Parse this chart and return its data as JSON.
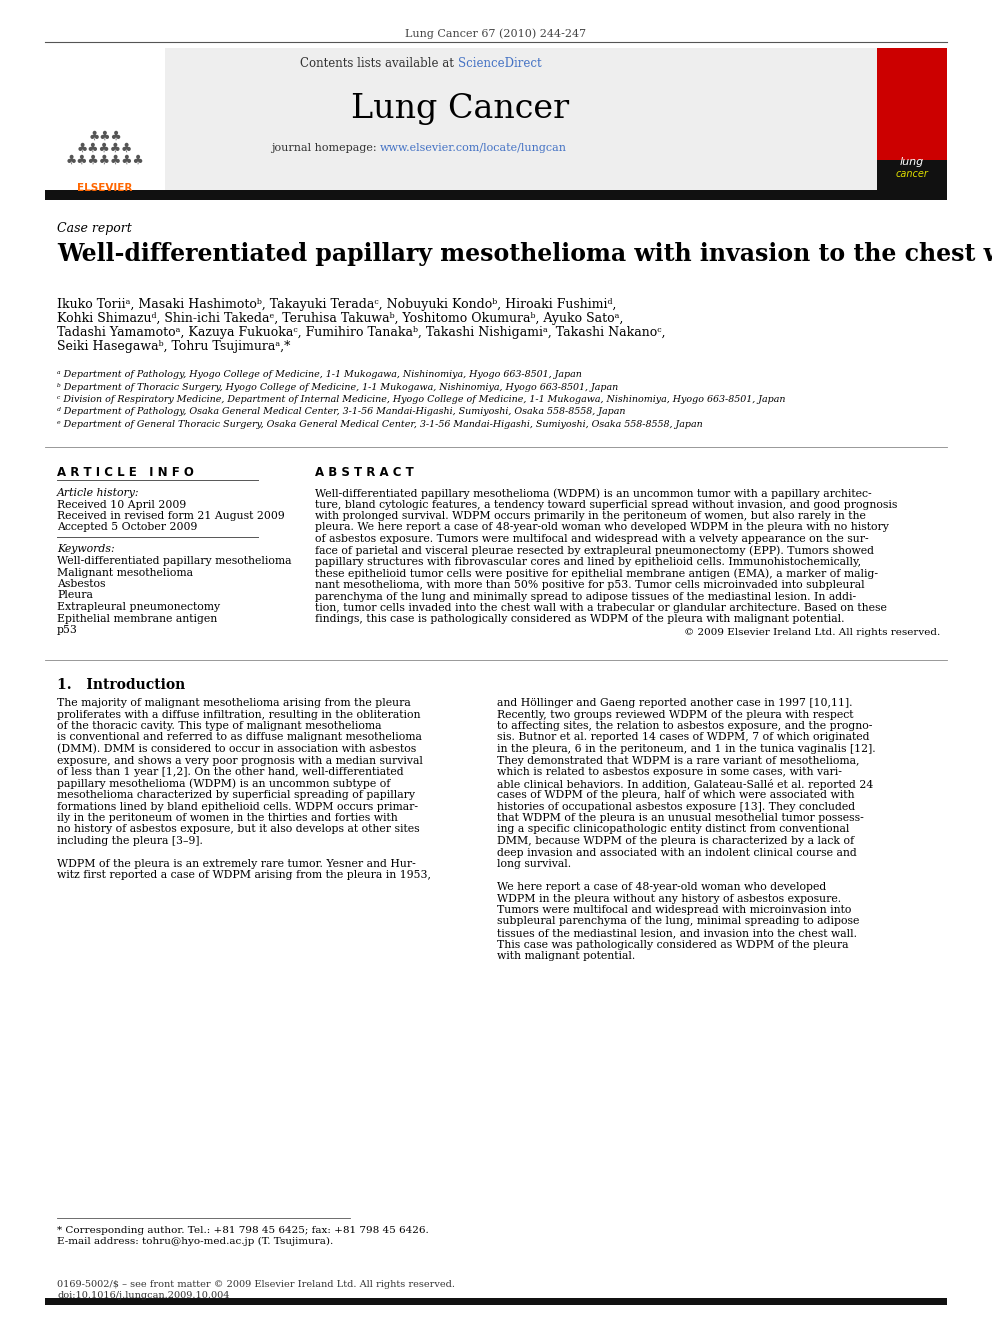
{
  "journal_ref": "Lung Cancer 67 (2010) 244-247",
  "contents_text": "Contents lists available at ",
  "sciencedirect_text": "ScienceDirect",
  "journal_name": "Lung Cancer",
  "journal_homepage": "journal homepage: ",
  "journal_url": "www.elsevier.com/locate/lungcan",
  "section_label": "Case report",
  "title": "Well-differentiated papillary mesothelioma with invasion to the chest wall",
  "authors_line1": "Ikuko Toriiᵃ, Masaki Hashimotoᵇ, Takayuki Teradaᶜ, Nobuyuki Kondoᵇ, Hiroaki Fushimiᵈ,",
  "authors_line2": "Kohki Shimazuᵈ, Shin-ichi Takedaᵉ, Teruhisa Takuwaᵇ, Yoshitomo Okumuraᵇ, Ayuko Satoᵃ,",
  "authors_line3": "Tadashi Yamamotoᵃ, Kazuya Fukuokaᶜ, Fumihiro Tanakaᵇ, Takashi Nishigamiᵃ, Takashi Nakanoᶜ,",
  "authors_line4": "Seiki Hasegawaᵇ, Tohru Tsujimuraᵃ,*",
  "affiliations": [
    "ᵃ Department of Pathology, Hyogo College of Medicine, 1-1 Mukogawa, Nishinomiya, Hyogo 663-8501, Japan",
    "ᵇ Department of Thoracic Surgery, Hyogo College of Medicine, 1-1 Mukogawa, Nishinomiya, Hyogo 663-8501, Japan",
    "ᶜ Division of Respiratory Medicine, Department of Internal Medicine, Hyogo College of Medicine, 1-1 Mukogawa, Nishinomiya, Hyogo 663-8501, Japan",
    "ᵈ Department of Pathology, Osaka General Medical Center, 3-1-56 Mandai-Higashi, Sumiyoshi, Osaka 558-8558, Japan",
    "ᵉ Department of General Thoracic Surgery, Osaka General Medical Center, 3-1-56 Mandai-Higashi, Sumiyoshi, Osaka 558-8558, Japan"
  ],
  "article_info_header": "A R T I C L E   I N F O",
  "abstract_header": "A B S T R A C T",
  "article_history_label": "Article history:",
  "received": "Received 10 April 2009",
  "revised": "Received in revised form 21 August 2009",
  "accepted": "Accepted 5 October 2009",
  "keywords_label": "Keywords:",
  "keywords": [
    "Well-differentiated papillary mesothelioma",
    "Malignant mesothelioma",
    "Asbestos",
    "Pleura",
    "Extrapleural pneumonectomy",
    "Epithelial membrane antigen",
    "p53"
  ],
  "abstract_lines": [
    "Well-differentiated papillary mesothelioma (WDPM) is an uncommon tumor with a papillary architec-",
    "ture, bland cytologic features, a tendency toward superficial spread without invasion, and good prognosis",
    "with prolonged survival. WDPM occurs primarily in the peritoneum of women, but also rarely in the",
    "pleura. We here report a case of 48-year-old woman who developed WDPM in the pleura with no history",
    "of asbestos exposure. Tumors were multifocal and widespread with a velvety appearance on the sur-",
    "face of parietal and visceral pleurae resected by extrapleural pneumonectomy (EPP). Tumors showed",
    "papillary structures with fibrovascular cores and lined by epithelioid cells. Immunohistochemically,",
    "these epithelioid tumor cells were positive for epithelial membrane antigen (EMA), a marker of malig-",
    "nant mesothelioma, with more than 50% positive for p53. Tumor cells microinvaded into subpleural",
    "parenchyma of the lung and minimally spread to adipose tissues of the mediastinal lesion. In addi-",
    "tion, tumor cells invaded into the chest wall with a trabecular or glandular architecture. Based on these",
    "findings, this case is pathologically considered as WDPM of the pleura with malignant potential."
  ],
  "abstract_copyright": "© 2009 Elsevier Ireland Ltd. All rights reserved.",
  "intro_header": "1.   Introduction",
  "col1_lines": [
    "The majority of malignant mesothelioma arising from the pleura",
    "proliferates with a diffuse infiltration, resulting in the obliteration",
    "of the thoracic cavity. This type of malignant mesothelioma",
    "is conventional and referred to as diffuse malignant mesothelioma",
    "(DMM). DMM is considered to occur in association with asbestos",
    "exposure, and shows a very poor prognosis with a median survival",
    "of less than 1 year [1,2]. On the other hand, well-differentiated",
    "papillary mesothelioma (WDPM) is an uncommon subtype of",
    "mesothelioma characterized by superficial spreading of papillary",
    "formations lined by bland epithelioid cells. WDPM occurs primar-",
    "ily in the peritoneum of women in the thirties and forties with",
    "no history of asbestos exposure, but it also develops at other sites",
    "including the pleura [3–9].",
    "",
    "WDPM of the pleura is an extremely rare tumor. Yesner and Hur-",
    "witz first reported a case of WDPM arising from the pleura in 1953,"
  ],
  "col2_lines": [
    "and Höllinger and Gaeng reported another case in 1997 [10,11].",
    "Recently, two groups reviewed WDPM of the pleura with respect",
    "to affecting sites, the relation to asbestos exposure, and the progno-",
    "sis. Butnor et al. reported 14 cases of WDPM, 7 of which originated",
    "in the pleura, 6 in the peritoneum, and 1 in the tunica vaginalis [12].",
    "They demonstrated that WDPM is a rare variant of mesothelioma,",
    "which is related to asbestos exposure in some cases, with vari-",
    "able clinical behaviors. In addition, Galateau-Sallé et al. reported 24",
    "cases of WDPM of the pleura, half of which were associated with",
    "histories of occupational asbestos exposure [13]. They concluded",
    "that WDPM of the pleura is an unusual mesothelial tumor possess-",
    "ing a specific clinicopathologic entity distinct from conventional",
    "DMM, because WDPM of the pleura is characterized by a lack of",
    "deep invasion and associated with an indolent clinical course and",
    "long survival.",
    "",
    "We here report a case of 48-year-old woman who developed",
    "WDPM in the pleura without any history of asbestos exposure.",
    "Tumors were multifocal and widespread with microinvasion into",
    "subpleural parenchyma of the lung, minimal spreading to adipose",
    "tissues of the mediastinal lesion, and invasion into the chest wall.",
    "This case was pathologically considered as WDPM of the pleura",
    "with malignant potential."
  ],
  "footnote_star": "* Corresponding author. Tel.: +81 798 45 6425; fax: +81 798 45 6426.",
  "footnote_email": "E-mail address: tohru@hyo-med.ac.jp (T. Tsujimura).",
  "footer_issn": "0169-5002/$ – see front matter © 2009 Elsevier Ireland Ltd. All rights reserved.",
  "footer_doi": "doi:10.1016/j.lungcan.2009.10.004",
  "bg_color": "#ffffff",
  "header_bg": "#eeeeee",
  "elsevier_color": "#FF6600",
  "sciencedirect_color": "#4472C4",
  "url_color": "#4472C4"
}
